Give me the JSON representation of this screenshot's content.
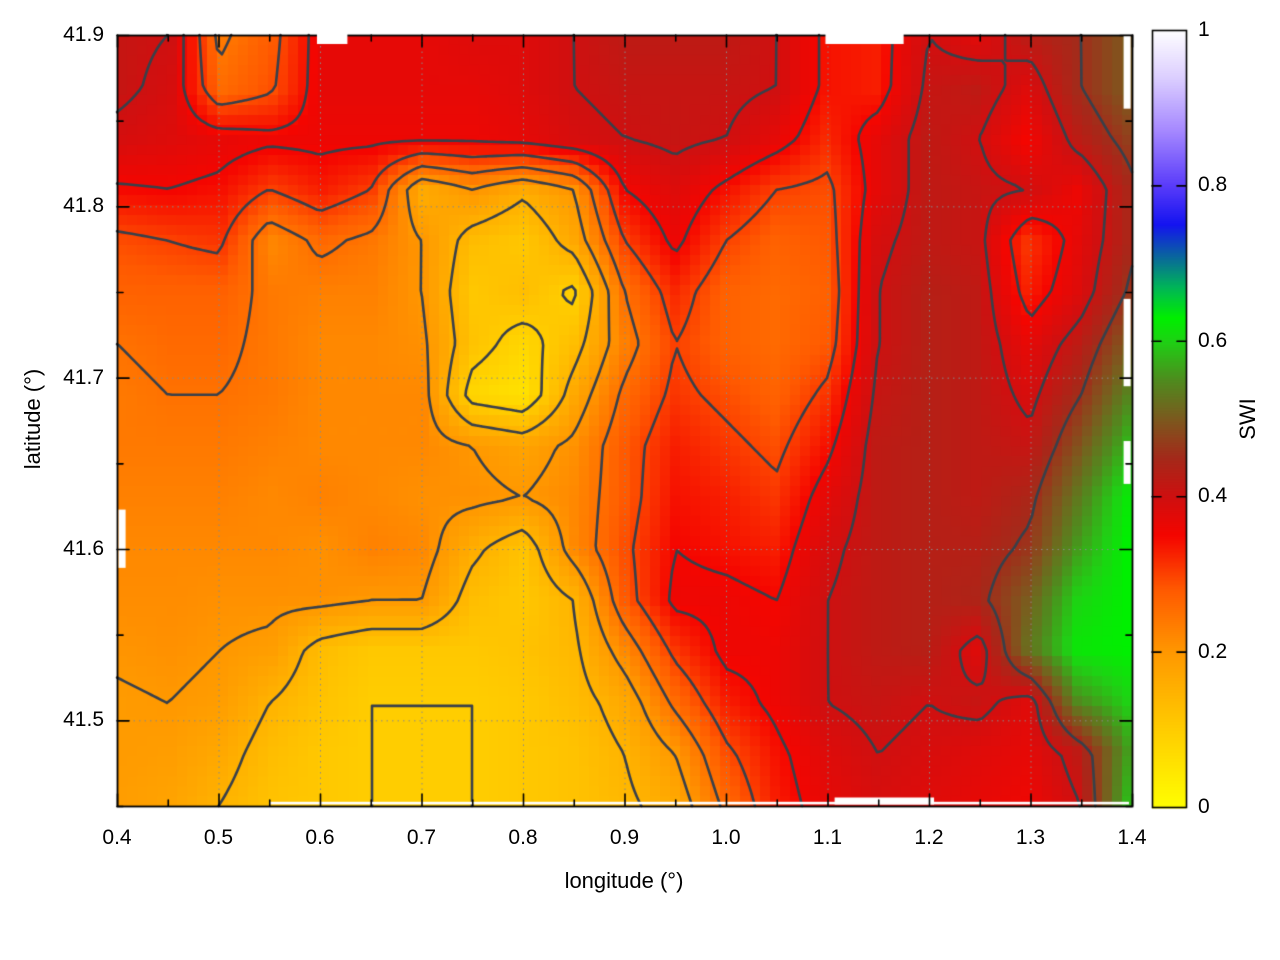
{
  "figure": {
    "background": "#ffffff",
    "border_color": "#000000",
    "grid_color": "#8a8a8a",
    "contour_color": "#39404a",
    "x_axis": {
      "label": "longitude (°)",
      "range": [
        0.4,
        1.4
      ],
      "major_ticks": [
        "0.4",
        "0.5",
        "0.6",
        "0.7",
        "0.8",
        "0.9",
        "1.0",
        "1.1",
        "1.2",
        "1.3",
        "1.4"
      ],
      "minor_tick_step": 0.05
    },
    "y_axis": {
      "label": "latitude (°)",
      "range": [
        41.45,
        41.9
      ],
      "major_ticks": [
        "41.5",
        "41.6",
        "41.7",
        "41.8",
        "41.9"
      ],
      "minor_tick_step": 0.05
    },
    "colorbar": {
      "label": "SWI",
      "range": [
        0,
        1
      ],
      "tick_labels": [
        "1",
        "0.8",
        "0.6",
        "0.4",
        "0.2",
        "0"
      ],
      "tick_values": [
        1,
        0.8,
        0.6,
        0.4,
        0.2,
        0
      ],
      "dash_values": [
        0.8,
        0.6,
        0.4,
        0.2
      ]
    }
  },
  "chart_data": {
    "type": "heatmap",
    "variable": "SWI",
    "title": "",
    "xlabel": "longitude (°)",
    "ylabel": "latitude (°)",
    "zlabel": "SWI",
    "x_range": [
      0.4,
      1.4
    ],
    "y_range": [
      41.45,
      41.9
    ],
    "z_range": [
      0,
      1
    ],
    "lon": [
      0.4,
      0.45,
      0.5,
      0.55,
      0.6,
      0.65,
      0.7,
      0.75,
      0.8,
      0.85,
      0.9,
      0.95,
      1.0,
      1.05,
      1.1,
      1.15,
      1.2,
      1.25,
      1.3,
      1.35,
      1.4
    ],
    "lat": [
      41.9,
      41.87,
      41.84,
      41.81,
      41.78,
      41.75,
      41.72,
      41.69,
      41.66,
      41.63,
      41.6,
      41.57,
      41.54,
      41.51,
      41.48,
      41.45
    ],
    "values": [
      [
        0.41,
        0.4,
        0.24,
        0.28,
        0.37,
        0.37,
        0.37,
        0.38,
        0.38,
        0.4,
        0.42,
        0.42,
        0.42,
        0.4,
        0.34,
        0.33,
        0.4,
        0.38,
        0.42,
        0.45,
        0.5
      ],
      [
        0.41,
        0.39,
        0.26,
        0.29,
        0.37,
        0.37,
        0.37,
        0.37,
        0.38,
        0.4,
        0.41,
        0.41,
        0.41,
        0.4,
        0.34,
        0.33,
        0.41,
        0.42,
        0.38,
        0.45,
        0.5
      ],
      [
        0.39,
        0.38,
        0.37,
        0.36,
        0.36,
        0.36,
        0.36,
        0.36,
        0.37,
        0.39,
        0.4,
        0.41,
        0.4,
        0.37,
        0.32,
        0.37,
        0.42,
        0.4,
        0.35,
        0.42,
        0.47
      ],
      [
        0.345,
        0.35,
        0.34,
        0.3,
        0.33,
        0.3,
        0.16,
        0.2,
        0.16,
        0.2,
        0.35,
        0.38,
        0.34,
        0.3,
        0.29,
        0.37,
        0.42,
        0.41,
        0.4,
        0.36,
        0.44
      ],
      [
        0.29,
        0.3,
        0.31,
        0.22,
        0.26,
        0.24,
        0.2,
        0.13,
        0.11,
        0.17,
        0.3,
        0.36,
        0.3,
        0.27,
        0.28,
        0.39,
        0.42,
        0.41,
        0.31,
        0.37,
        0.44
      ],
      [
        0.27,
        0.27,
        0.27,
        0.24,
        0.23,
        0.23,
        0.2,
        0.11,
        0.13,
        0.09,
        0.25,
        0.32,
        0.27,
        0.26,
        0.27,
        0.4,
        0.43,
        0.42,
        0.33,
        0.38,
        0.46
      ],
      [
        0.25,
        0.26,
        0.26,
        0.24,
        0.22,
        0.22,
        0.21,
        0.12,
        0.08,
        0.13,
        0.23,
        0.3,
        0.27,
        0.26,
        0.28,
        0.4,
        0.43,
        0.42,
        0.37,
        0.42,
        0.5
      ],
      [
        0.24,
        0.25,
        0.25,
        0.24,
        0.22,
        0.22,
        0.22,
        0.08,
        0.06,
        0.17,
        0.26,
        0.31,
        0.29,
        0.27,
        0.31,
        0.41,
        0.43,
        0.42,
        0.39,
        0.45,
        0.54
      ],
      [
        0.24,
        0.24,
        0.24,
        0.23,
        0.22,
        0.22,
        0.22,
        0.2,
        0.18,
        0.21,
        0.28,
        0.33,
        0.31,
        0.29,
        0.34,
        0.42,
        0.43,
        0.42,
        0.41,
        0.49,
        0.58
      ],
      [
        0.23,
        0.23,
        0.23,
        0.22,
        0.23,
        0.22,
        0.21,
        0.21,
        0.2,
        0.22,
        0.28,
        0.34,
        0.33,
        0.31,
        0.37,
        0.42,
        0.43,
        0.42,
        0.44,
        0.53,
        0.62
      ],
      [
        0.22,
        0.22,
        0.22,
        0.22,
        0.21,
        0.23,
        0.22,
        0.16,
        0.12,
        0.22,
        0.29,
        0.35,
        0.34,
        0.33,
        0.39,
        0.42,
        0.43,
        0.43,
        0.46,
        0.56,
        0.63
      ],
      [
        0.215,
        0.215,
        0.21,
        0.21,
        0.21,
        0.2,
        0.2,
        0.13,
        0.11,
        0.15,
        0.28,
        0.36,
        0.36,
        0.35,
        0.4,
        0.42,
        0.43,
        0.44,
        0.5,
        0.6,
        0.63
      ],
      [
        0.205,
        0.21,
        0.2,
        0.19,
        0.13,
        0.11,
        0.11,
        0.11,
        0.12,
        0.14,
        0.22,
        0.31,
        0.36,
        0.36,
        0.4,
        0.42,
        0.43,
        0.38,
        0.52,
        0.62,
        0.63
      ],
      [
        0.195,
        0.2,
        0.19,
        0.15,
        0.12,
        0.1,
        0.1,
        0.1,
        0.11,
        0.13,
        0.17,
        0.26,
        0.33,
        0.36,
        0.4,
        0.41,
        0.4,
        0.41,
        0.38,
        0.55,
        0.6
      ],
      [
        0.195,
        0.19,
        0.17,
        0.13,
        0.11,
        0.1,
        0.1,
        0.1,
        0.11,
        0.12,
        0.15,
        0.2,
        0.29,
        0.34,
        0.38,
        0.4,
        0.39,
        0.38,
        0.37,
        0.42,
        0.56
      ],
      [
        0.19,
        0.18,
        0.15,
        0.12,
        0.11,
        0.1,
        0.1,
        0.1,
        0.11,
        0.12,
        0.14,
        0.17,
        0.26,
        0.33,
        0.37,
        0.39,
        0.38,
        0.37,
        0.36,
        0.4,
        0.58
      ]
    ],
    "contour_levels": [
      0.1,
      0.15,
      0.2,
      0.25,
      0.3,
      0.35,
      0.4,
      0.45
    ],
    "palette_stops": [
      [
        0.0,
        "#ffff00"
      ],
      [
        0.1,
        "#ffcd00"
      ],
      [
        0.2,
        "#ff9800"
      ],
      [
        0.28,
        "#ff5a00"
      ],
      [
        0.35,
        "#f50500"
      ],
      [
        0.4,
        "#cf1010"
      ],
      [
        0.45,
        "#a42a1a"
      ],
      [
        0.5,
        "#7c5a1e"
      ],
      [
        0.55,
        "#4f8c1e"
      ],
      [
        0.6,
        "#1ed214"
      ],
      [
        0.63,
        "#00f000"
      ],
      [
        0.67,
        "#00b45a"
      ],
      [
        0.71,
        "#0a64a0"
      ],
      [
        0.75,
        "#1414f0"
      ],
      [
        0.8,
        "#5a3cfa"
      ],
      [
        0.87,
        "#a588ff"
      ],
      [
        0.94,
        "#ddd0ff"
      ],
      [
        1.0,
        "#ffffff"
      ]
    ],
    "missing_regions": [
      {
        "edge": "top",
        "lon": [
          0.597,
          0.627
        ]
      },
      {
        "edge": "top",
        "lon": [
          1.098,
          1.175
        ]
      },
      {
        "edge": "left",
        "lat": [
          41.589,
          41.623
        ]
      },
      {
        "edge": "right",
        "lat": [
          41.857,
          41.9
        ]
      },
      {
        "edge": "right",
        "lat": [
          41.695,
          41.746
        ]
      },
      {
        "edge": "right",
        "lat": [
          41.638,
          41.663
        ]
      },
      {
        "edge": "bottom",
        "lon": [
          0.55,
          1.397
        ],
        "thin": true
      },
      {
        "edge": "bottom",
        "lon": [
          1.107,
          1.205
        ]
      }
    ]
  }
}
